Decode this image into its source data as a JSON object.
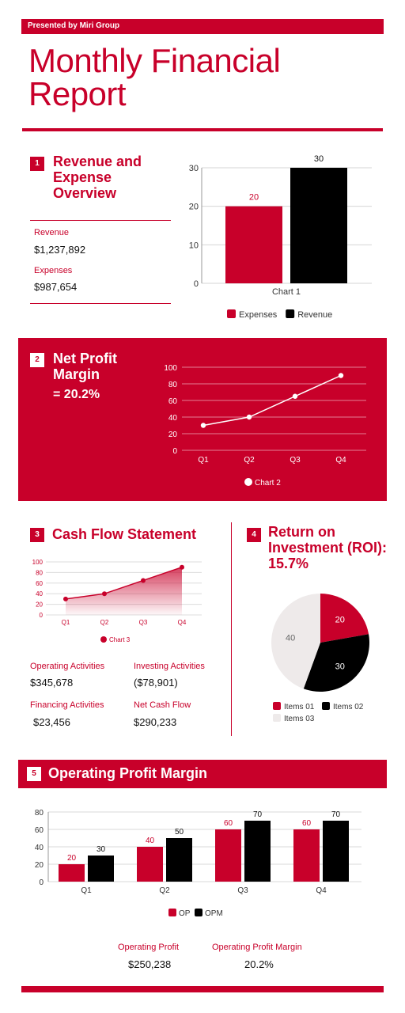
{
  "header": {
    "presenter": "Presented by Miri Group",
    "title": "Monthly Financial Report"
  },
  "section1": {
    "number": "1",
    "title": "Revenue and Expense Overview",
    "revenue_label": "Revenue",
    "revenue_value": "$1,237,892",
    "expenses_label": "Expenses",
    "expenses_value": "$987,654"
  },
  "section2": {
    "number": "2",
    "title": "Net Profit Margin",
    "value": "=  20.2%"
  },
  "section3": {
    "number": "3",
    "title": "Cash Flow Statement",
    "operating_label": "Operating Activities",
    "operating_value": "$345,678",
    "investing_label": "Investing Activities",
    "investing_value": "($78,901)",
    "financing_label": "Financing Activities",
    "financing_value": "$23,456",
    "netcash_label": "Net Cash Flow",
    "netcash_value": "$290,233"
  },
  "section4": {
    "number": "4",
    "title": "Return on Investment (ROI): 15.7%"
  },
  "section5": {
    "number": "5",
    "title": "Operating Profit Margin",
    "op_label": "Operating Profit",
    "op_value": "$250,238",
    "opm_label": "Operating Profit Margin",
    "opm_value": "20.2%"
  },
  "colors": {
    "red": "#c8002a",
    "black": "#000000",
    "light": "#eeeaea"
  },
  "chart_data": [
    {
      "type": "bar",
      "categories": [
        "Chart 1"
      ],
      "series": [
        {
          "name": "Expenses",
          "values": [
            20
          ],
          "color": "#c8002a"
        },
        {
          "name": "Revenue",
          "values": [
            30
          ],
          "color": "#000000"
        }
      ],
      "yticks": [
        0,
        10,
        20,
        30
      ],
      "ylim": [
        0,
        30
      ],
      "grid": true,
      "legend": "bottom"
    },
    {
      "type": "line",
      "categories": [
        "Q1",
        "Q2",
        "Q3",
        "Q4"
      ],
      "series": [
        {
          "name": "Chart 2",
          "values": [
            30,
            40,
            65,
            90
          ]
        }
      ],
      "yticks": [
        0,
        20,
        40,
        60,
        80,
        100
      ],
      "ylim": [
        0,
        100
      ],
      "grid": true,
      "legend": "bottom"
    },
    {
      "type": "area",
      "categories": [
        "Q1",
        "Q2",
        "Q3",
        "Q4"
      ],
      "series": [
        {
          "name": "Chart 3",
          "values": [
            30,
            40,
            65,
            90
          ]
        }
      ],
      "yticks": [
        0,
        20,
        40,
        60,
        80,
        100
      ],
      "ylim": [
        0,
        100
      ],
      "grid": true,
      "legend": "bottom"
    },
    {
      "type": "pie",
      "slices": [
        {
          "name": "Items 01",
          "value": 20,
          "color": "#c8002a"
        },
        {
          "name": "Items 02",
          "value": 30,
          "color": "#000000"
        },
        {
          "name": "Items 03",
          "value": 40,
          "color": "#eeeaea"
        }
      ],
      "legend": "bottom"
    },
    {
      "type": "bar",
      "categories": [
        "Q1",
        "Q2",
        "Q3",
        "Q4"
      ],
      "series": [
        {
          "name": "OP",
          "values": [
            20,
            40,
            60,
            60
          ],
          "color": "#c8002a"
        },
        {
          "name": "OPM",
          "values": [
            30,
            50,
            70,
            70
          ],
          "color": "#000000"
        }
      ],
      "yticks": [
        0,
        20,
        40,
        60,
        80
      ],
      "ylim": [
        0,
        80
      ],
      "grid": true,
      "legend": "bottom"
    }
  ]
}
